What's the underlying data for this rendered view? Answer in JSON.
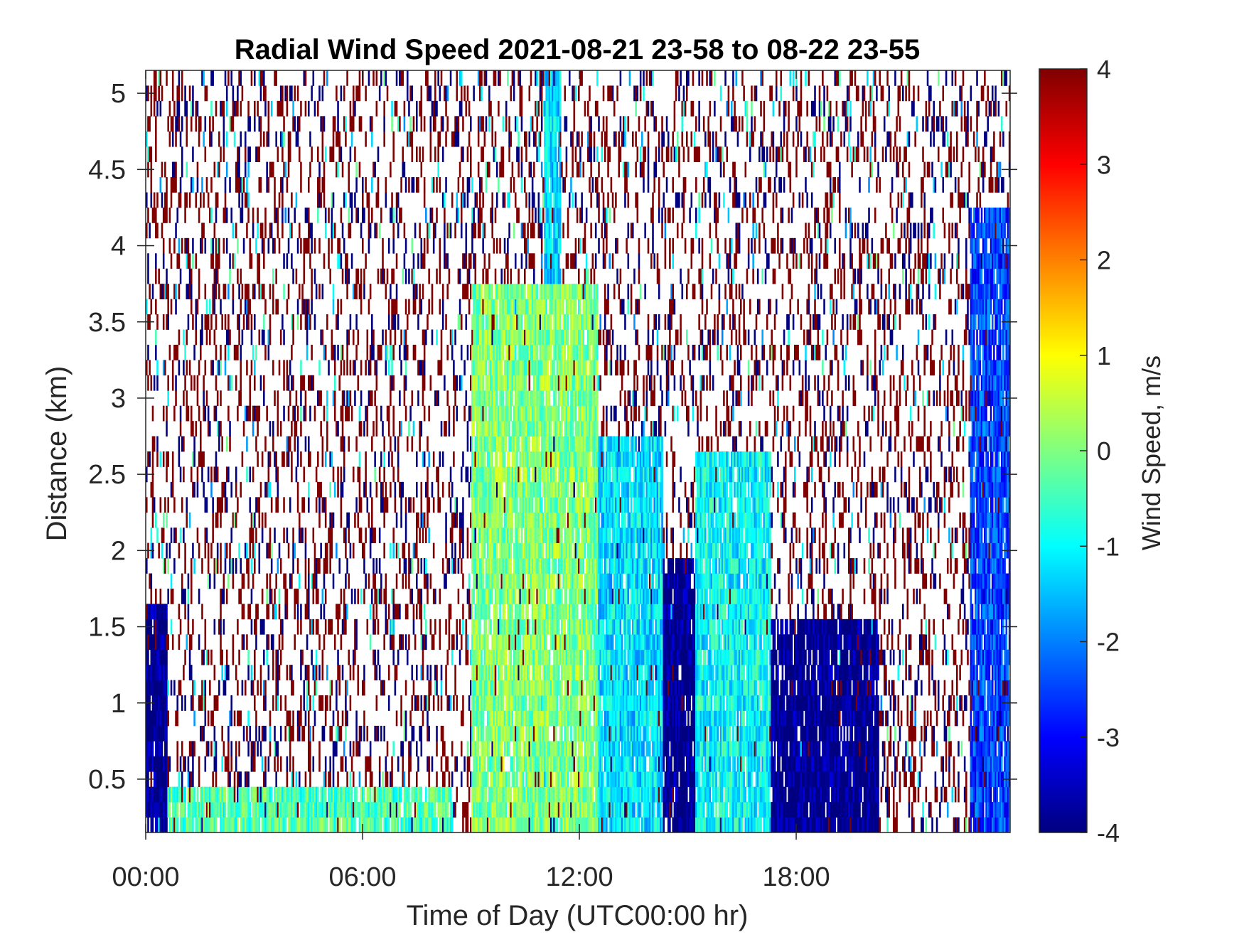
{
  "chart_data": {
    "type": "heatmap",
    "title": "Radial Wind Speed 2021-08-21 23-58 to 08-22 23-55",
    "xlabel": "Time of Day (UTC00:00 hr)",
    "ylabel": "Distance (km)",
    "x_unit": "hours of day",
    "xlim": [
      0,
      23.92
    ],
    "ylim": [
      0.15,
      5.15
    ],
    "x_ticks": [
      0,
      6,
      12,
      18
    ],
    "x_tick_labels": [
      "00:00",
      "06:00",
      "12:00",
      "18:00"
    ],
    "y_ticks": [
      0.5,
      1,
      1.5,
      2,
      2.5,
      3,
      3.5,
      4,
      4.5,
      5
    ],
    "y_tick_labels": [
      "0.5",
      "1",
      "1.5",
      "2",
      "2.5",
      "3",
      "3.5",
      "4",
      "4.5",
      "5"
    ],
    "colorbar": {
      "label": "Wind Speed, m/s",
      "range": [
        -4,
        4
      ],
      "ticks": [
        4,
        3,
        2,
        1,
        0,
        -1,
        -2,
        -3,
        -4
      ],
      "tick_labels": [
        "4",
        "3",
        "2",
        "1",
        "0",
        "-1",
        "-2",
        "-3",
        "-4"
      ],
      "colormap": "jet"
    },
    "grid": false,
    "approximate_regions": [
      {
        "name": "upper noise",
        "x": [
          0,
          23.92
        ],
        "y": [
          2.0,
          5.15
        ],
        "value": "scattered -4 and +4 speckle"
      },
      {
        "name": "early-morning strong negative",
        "x": [
          0,
          0.6
        ],
        "y": [
          0.15,
          1.6
        ],
        "value": -4
      },
      {
        "name": "night low-level",
        "x": [
          0.6,
          8.5
        ],
        "y": [
          0.15,
          0.45
        ],
        "value": -0.4
      },
      {
        "name": "midday mixed layer",
        "x": [
          9,
          12.5
        ],
        "y": [
          0.15,
          3.7
        ],
        "value": 0.0
      },
      {
        "name": "late-morning plume",
        "x": [
          11,
          11.5
        ],
        "y": [
          3.7,
          5.15
        ],
        "value": -1.3
      },
      {
        "name": "afternoon descending flow",
        "x": [
          12.5,
          14.3
        ],
        "y": [
          0.15,
          2.8
        ],
        "value": -1.2
      },
      {
        "name": "afternoon strong negative",
        "x": [
          14.3,
          15.2
        ],
        "y": [
          0.15,
          1.9
        ],
        "value": -4
      },
      {
        "name": "late-afternoon layer",
        "x": [
          15.2,
          17.3
        ],
        "y": [
          0.15,
          2.6
        ],
        "value": -1.0
      },
      {
        "name": "evening strong negative",
        "x": [
          17.3,
          20.3
        ],
        "y": [
          0.15,
          1.5
        ],
        "value": -4
      },
      {
        "name": "late-evening mixed",
        "x": [
          22.8,
          23.92
        ],
        "y": [
          0.15,
          4.2
        ],
        "value": -2.5
      }
    ]
  },
  "colors": {
    "axis": "#262626",
    "title": "#000000"
  }
}
